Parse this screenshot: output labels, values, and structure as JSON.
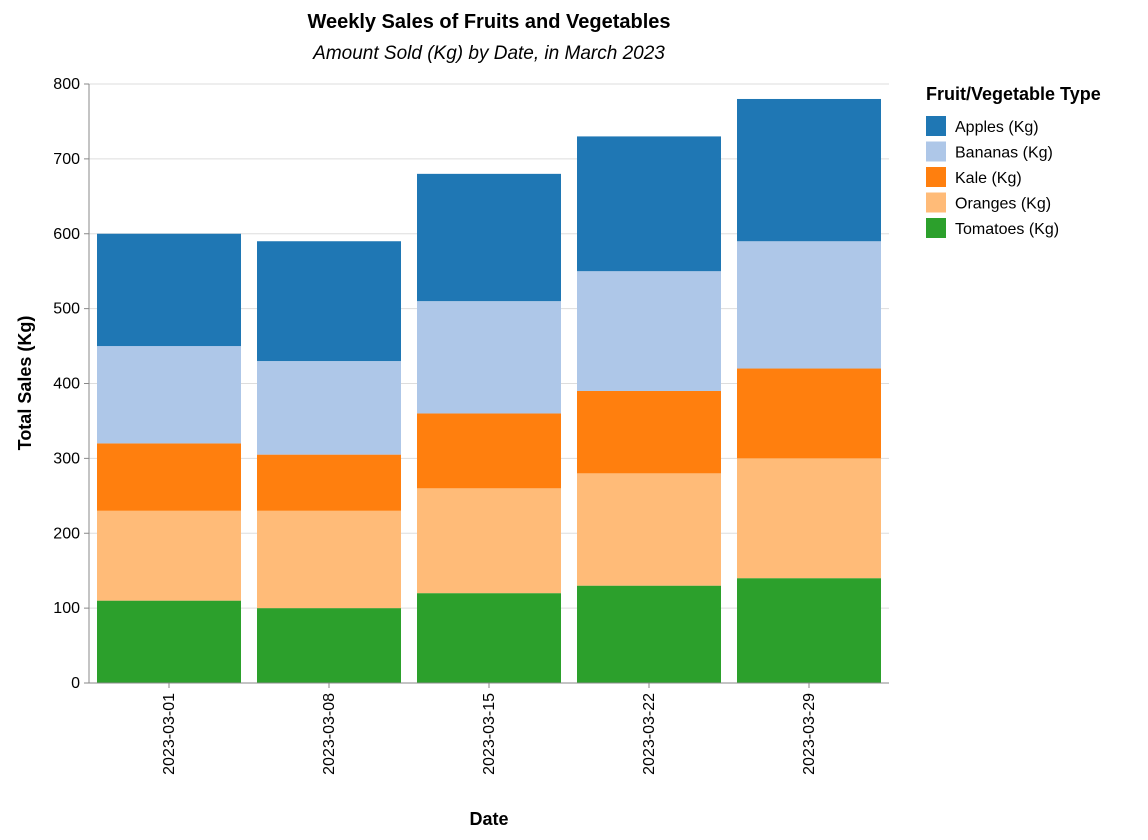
{
  "chart_data": {
    "type": "bar",
    "stacked": true,
    "title": "Weekly Sales of Fruits and Vegetables",
    "subtitle": "Amount Sold (Kg) by Date, in March 2023",
    "xlabel": "Date",
    "ylabel": "Total Sales (Kg)",
    "ylim": [
      0,
      800
    ],
    "yticks": [
      0,
      100,
      200,
      300,
      400,
      500,
      600,
      700,
      800
    ],
    "grid": true,
    "legend_title": "Fruit/Vegetable Type",
    "legend_position": "right",
    "categories": [
      "2023-03-01",
      "2023-03-08",
      "2023-03-15",
      "2023-03-22",
      "2023-03-29"
    ],
    "series": [
      {
        "name": "Tomatoes (Kg)",
        "color": "#2ca02c",
        "values": [
          110,
          100,
          120,
          130,
          140
        ]
      },
      {
        "name": "Oranges (Kg)",
        "color": "#ffbb78",
        "values": [
          120,
          130,
          140,
          150,
          160
        ]
      },
      {
        "name": "Kale (Kg)",
        "color": "#ff7f0e",
        "values": [
          90,
          75,
          100,
          110,
          120
        ]
      },
      {
        "name": "Bananas (Kg)",
        "color": "#aec7e8",
        "values": [
          130,
          125,
          150,
          160,
          170
        ]
      },
      {
        "name": "Apples (Kg)",
        "color": "#1f77b4",
        "values": [
          150,
          160,
          170,
          180,
          190
        ]
      }
    ],
    "legend_order": [
      "Apples (Kg)",
      "Bananas (Kg)",
      "Kale (Kg)",
      "Oranges (Kg)",
      "Tomatoes (Kg)"
    ]
  }
}
